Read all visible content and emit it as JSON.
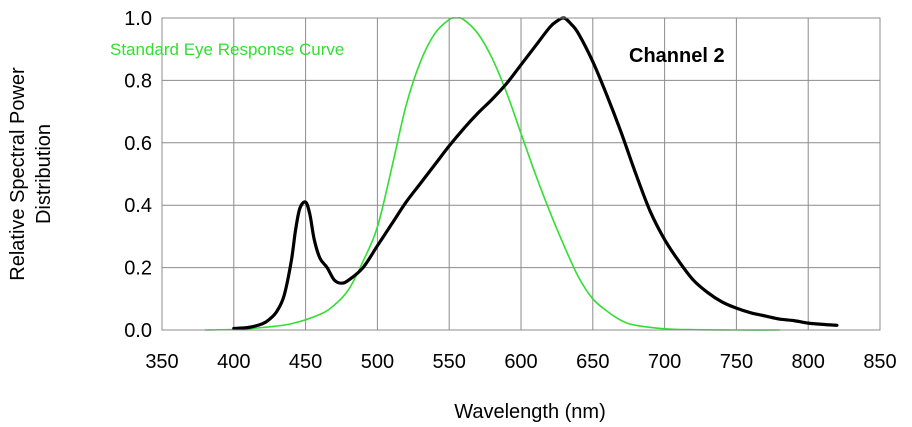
{
  "chart_data": {
    "type": "line",
    "xlabel": "Wavelength  (nm)",
    "ylabel_line1": "Relative  Spectral Power",
    "ylabel_line2": "Distribution",
    "xlim": [
      350,
      850
    ],
    "ylim": [
      0,
      1.0
    ],
    "x_ticks": [
      "350",
      "400",
      "450",
      "500",
      "550",
      "600",
      "650",
      "700",
      "750",
      "800",
      "850"
    ],
    "y_ticks": [
      "0.0",
      "0.2",
      "0.4",
      "0.6",
      "0.8",
      "1.0"
    ],
    "grid": true,
    "annotations": {
      "eye_curve_label": "Standard Eye Response Curve",
      "channel_label": "Channel 2"
    },
    "colors": {
      "eye_curve": "#33dd33",
      "channel_curve": "#000000",
      "grid": "#8c8c8c"
    },
    "series": [
      {
        "x": [
          380,
          400,
          420,
          440,
          460,
          470,
          480,
          490,
          500,
          510,
          520,
          530,
          540,
          550,
          555,
          560,
          570,
          580,
          590,
          600,
          610,
          620,
          630,
          640,
          650,
          660,
          670,
          680,
          700,
          720,
          750,
          780
        ],
        "y": [
          0.0,
          0.002,
          0.008,
          0.02,
          0.05,
          0.08,
          0.13,
          0.22,
          0.33,
          0.52,
          0.72,
          0.86,
          0.95,
          0.995,
          1.0,
          0.995,
          0.95,
          0.87,
          0.76,
          0.63,
          0.5,
          0.38,
          0.27,
          0.17,
          0.1,
          0.06,
          0.03,
          0.015,
          0.004,
          0.001,
          0.0,
          0.0
        ]
      },
      {
        "x": [
          400,
          410,
          420,
          425,
          430,
          435,
          440,
          443,
          446,
          450,
          453,
          456,
          460,
          465,
          470,
          475,
          480,
          490,
          500,
          510,
          520,
          530,
          540,
          550,
          560,
          570,
          580,
          590,
          600,
          610,
          620,
          625,
          630,
          635,
          640,
          650,
          660,
          670,
          680,
          690,
          700,
          710,
          720,
          730,
          740,
          750,
          760,
          770,
          780,
          790,
          800,
          810,
          820
        ],
        "y": [
          0.005,
          0.008,
          0.02,
          0.035,
          0.06,
          0.11,
          0.22,
          0.32,
          0.39,
          0.41,
          0.37,
          0.29,
          0.23,
          0.2,
          0.16,
          0.15,
          0.16,
          0.2,
          0.27,
          0.34,
          0.41,
          0.47,
          0.53,
          0.59,
          0.645,
          0.695,
          0.74,
          0.79,
          0.85,
          0.91,
          0.97,
          0.99,
          1.0,
          0.98,
          0.95,
          0.86,
          0.75,
          0.63,
          0.5,
          0.38,
          0.29,
          0.22,
          0.16,
          0.12,
          0.09,
          0.07,
          0.055,
          0.045,
          0.035,
          0.03,
          0.022,
          0.018,
          0.015
        ]
      }
    ]
  }
}
